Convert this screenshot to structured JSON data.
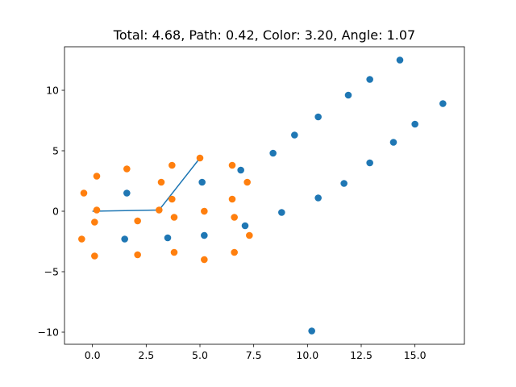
{
  "chart_data": {
    "type": "scatter",
    "title": "Total: 4.68, Path: 0.42, Color: 3.20, Angle: 1.07",
    "xlabel": "",
    "ylabel": "",
    "xlim": [
      -1.3,
      17.3
    ],
    "ylim": [
      -11.0,
      13.6
    ],
    "grid": false,
    "xticks": [
      0.0,
      2.5,
      5.0,
      7.5,
      10.0,
      12.5,
      15.0
    ],
    "xtick_labels": [
      "0.0",
      "2.5",
      "5.0",
      "7.5",
      "10.0",
      "12.5",
      "15.0"
    ],
    "yticks": [
      -10,
      -5,
      0,
      5,
      10
    ],
    "ytick_labels": [
      "−10",
      "−5",
      "0",
      "5",
      "10"
    ],
    "series": [
      {
        "name": "blue points",
        "color": "#1f77b4",
        "points": [
          [
            1.6,
            1.5
          ],
          [
            1.5,
            -2.3
          ],
          [
            3.5,
            -2.2
          ],
          [
            5.1,
            2.4
          ],
          [
            5.2,
            -2.0
          ],
          [
            6.9,
            3.4
          ],
          [
            7.1,
            -1.2
          ],
          [
            8.4,
            4.8
          ],
          [
            8.8,
            -0.1
          ],
          [
            9.4,
            6.3
          ],
          [
            10.5,
            7.8
          ],
          [
            10.5,
            1.1
          ],
          [
            10.2,
            -9.9
          ],
          [
            11.7,
            2.3
          ],
          [
            11.9,
            9.6
          ],
          [
            12.9,
            10.9
          ],
          [
            12.9,
            4.0
          ],
          [
            14.0,
            5.7
          ],
          [
            14.3,
            12.5
          ],
          [
            15.0,
            7.2
          ],
          [
            16.3,
            8.9
          ]
        ]
      },
      {
        "name": "orange points",
        "color": "#ff7f0e",
        "points": [
          [
            -0.4,
            1.5
          ],
          [
            -0.5,
            -2.3
          ],
          [
            0.2,
            2.9
          ],
          [
            0.2,
            0.1
          ],
          [
            0.1,
            -0.9
          ],
          [
            0.1,
            -3.7
          ],
          [
            1.6,
            3.5
          ],
          [
            2.1,
            -0.8
          ],
          [
            2.1,
            -3.6
          ],
          [
            3.1,
            0.1
          ],
          [
            3.2,
            2.4
          ],
          [
            3.7,
            3.8
          ],
          [
            3.7,
            1.0
          ],
          [
            3.8,
            -0.5
          ],
          [
            3.8,
            -3.4
          ],
          [
            5.0,
            4.4
          ],
          [
            5.2,
            0.0
          ],
          [
            5.2,
            -4.0
          ],
          [
            6.5,
            3.8
          ],
          [
            6.5,
            1.0
          ],
          [
            6.6,
            -0.5
          ],
          [
            6.6,
            -3.4
          ],
          [
            7.2,
            2.4
          ],
          [
            7.3,
            -2.0
          ]
        ]
      }
    ],
    "path": {
      "color": "#1f77b4",
      "points": [
        [
          0.0,
          0.0
        ],
        [
          3.1,
          0.1
        ],
        [
          5.0,
          4.4
        ]
      ]
    }
  }
}
